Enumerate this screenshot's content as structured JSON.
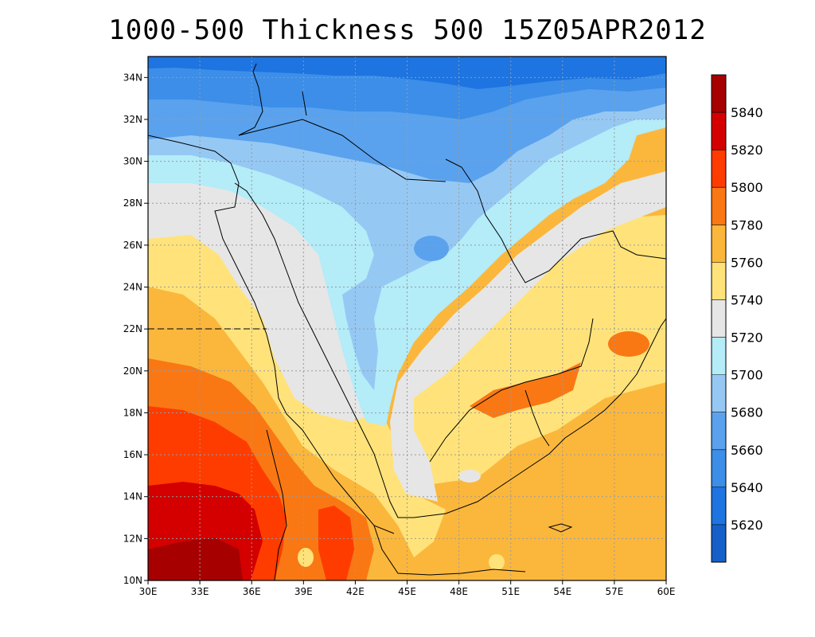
{
  "title": "1000-500 Thickness 500 15Z05APR2012",
  "map": {
    "lon_range": [
      30,
      60
    ],
    "lat_range": [
      10,
      35
    ],
    "x_ticks": [
      "30E",
      "33E",
      "36E",
      "39E",
      "42E",
      "45E",
      "48E",
      "51E",
      "54E",
      "57E",
      "60E"
    ],
    "y_ticks": [
      "10N",
      "12N",
      "14N",
      "16N",
      "18N",
      "20N",
      "22N",
      "24N",
      "26N",
      "28N",
      "30N",
      "32N",
      "34N"
    ],
    "grid": "dotted",
    "projection": "lat-lon"
  },
  "colorbar": {
    "orientation": "vertical",
    "placement": "right",
    "labels": [
      "5620",
      "5640",
      "5660",
      "5680",
      "5700",
      "5720",
      "5740",
      "5760",
      "5780",
      "5800",
      "5820",
      "5840"
    ],
    "colors": [
      "#1560c8",
      "#1e74e0",
      "#3c8ee8",
      "#5aa2ee",
      "#96c8f4",
      "#b4ecf8",
      "#e6e6e6",
      "#ffe37a",
      "#fbb73c",
      "#f97814",
      "#ff3c00",
      "#d40000",
      "#a60000"
    ]
  }
}
